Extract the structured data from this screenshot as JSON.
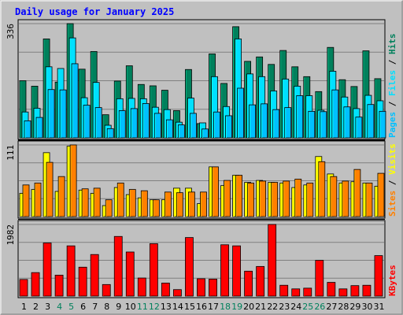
{
  "chart_data": {
    "type": "bar",
    "title": "Daily usage for January 2025",
    "colors": {
      "background": "#c0c0c0",
      "title": "#0000ff",
      "hits": "#00805c",
      "files": "#00e0ff",
      "pages": "#00c0ff",
      "visits": "#ffff00",
      "sites": "#ff8000",
      "kbytes": "#ff0000",
      "weekday_label": "#000000",
      "weekend_label": "#00805c",
      "separator": "#000000"
    },
    "x": {
      "categories": [
        "1",
        "2",
        "3",
        "4",
        "5",
        "6",
        "7",
        "8",
        "9",
        "10",
        "11",
        "12",
        "13",
        "14",
        "15",
        "16",
        "17",
        "18",
        "19",
        "20",
        "21",
        "22",
        "23",
        "24",
        "25",
        "26",
        "27",
        "28",
        "29",
        "30",
        "31"
      ],
      "weekend_days": [
        "4",
        "5",
        "11",
        "12",
        "18",
        "19",
        "25",
        "26"
      ]
    },
    "panels": [
      {
        "name": "hits-files-pages",
        "ymax_label": "336",
        "ylim": [
          0,
          336
        ],
        "side_labels": [
          {
            "text": "Pages",
            "color": "#00c0ff"
          },
          {
            "text": " / ",
            "color": "#000000"
          },
          {
            "text": "Files",
            "color": "#00e0ff"
          },
          {
            "text": " / ",
            "color": "#000000"
          },
          {
            "text": "Hits",
            "color": "#00805c"
          }
        ],
        "series": [
          {
            "name": "Hits",
            "values": [
              168,
              152,
              291,
              164,
              336,
              202,
              254,
              68,
              167,
              212,
              157,
              153,
              140,
              80,
              201,
              42,
              247,
              160,
              327,
              225,
              238,
              216,
              257,
              209,
              180,
              136,
              266,
              171,
              151,
              256,
              174
            ]
          },
          {
            "name": "Files",
            "values": [
              76,
              87,
              209,
              204,
              294,
              118,
              163,
              37,
              115,
              116,
              115,
              90,
              83,
              46,
              117,
              44,
              180,
              92,
              291,
              188,
              180,
              138,
              173,
              152,
              124,
              81,
              196,
              120,
              86,
              125,
              109
            ]
          },
          {
            "name": "Pages",
            "values": [
              50,
              60,
              142,
              141,
              218,
              96,
              89,
              27,
              80,
              86,
              101,
              72,
              53,
              38,
              72,
              26,
              76,
              65,
              146,
              97,
              100,
              83,
              89,
              124,
              78,
              77,
              141,
              91,
              61,
              98,
              78
            ]
          }
        ]
      },
      {
        "name": "visits-sites",
        "ymax_label": "111",
        "ylim": [
          0,
          111
        ],
        "side_labels": [
          {
            "text": "Sites",
            "color": "#ff8000"
          },
          {
            "text": " / ",
            "color": "#000000"
          },
          {
            "text": "Visits",
            "color": "#ffff00"
          }
        ],
        "series": [
          {
            "name": "Visits",
            "values": [
              36,
              42,
              99,
              39,
              109,
              41,
              36,
              17,
              45,
              34,
              29,
              26,
              26,
              44,
              44,
              20,
              77,
              48,
              64,
              53,
              56,
              53,
              52,
              45,
              49,
              93,
              66,
              52,
              54,
              52,
              47
            ]
          },
          {
            "name": "Sites",
            "values": [
              49,
              52,
              84,
              62,
              111,
              43,
              44,
              26,
              52,
              42,
              40,
              26,
              38,
              37,
              38,
              38,
              77,
              56,
              64,
              52,
              55,
              53,
              55,
              58,
              52,
              85,
              62,
              55,
              73,
              52,
              67
            ]
          }
        ]
      },
      {
        "name": "kbytes",
        "ymax_label": "1982",
        "ylim": [
          0,
          1982
        ],
        "side_labels": [
          {
            "text": "KBytes",
            "color": "#ff0000"
          }
        ],
        "series": [
          {
            "name": "KBytes",
            "values": [
              460,
              650,
              1470,
              580,
              1390,
              800,
              1150,
              320,
              1650,
              1220,
              500,
              1450,
              360,
              180,
              1620,
              480,
              470,
              1420,
              1390,
              690,
              820,
              1982,
              300,
              200,
              220,
              990,
              380,
              200,
              290,
              300,
              1120
            ]
          }
        ]
      }
    ]
  }
}
